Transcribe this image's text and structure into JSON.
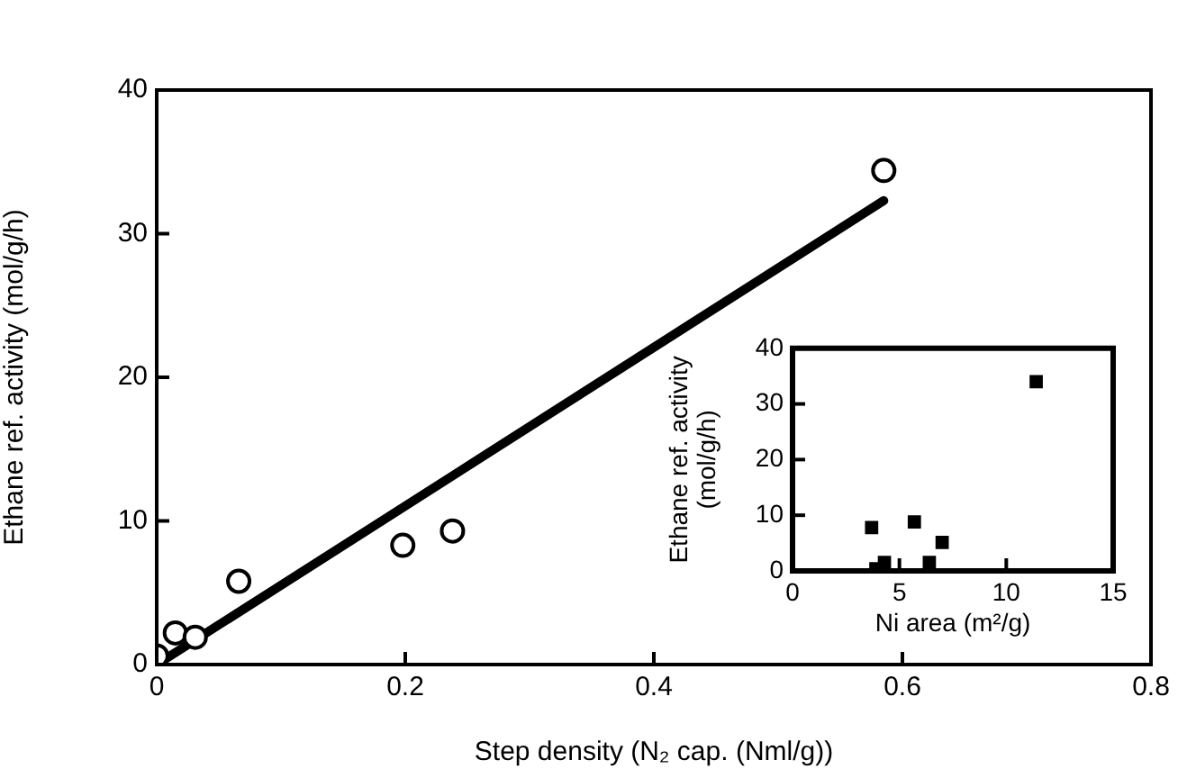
{
  "chart_data": [
    {
      "type": "scatter",
      "xlabel": "Step density (N₂ cap. (Nml/g))",
      "ylabel": "Ethane ref. activity (mol/g/h)",
      "xlim": [
        0,
        0.8
      ],
      "ylim": [
        0,
        40
      ],
      "xticks": [
        0,
        0.2,
        0.4,
        0.6,
        0.8
      ],
      "yticks": [
        0,
        10,
        20,
        30,
        40
      ],
      "series": [
        {
          "marker": "circle",
          "color": "#000000",
          "x": [
            0,
            0.015,
            0.031,
            0.066,
            0.198,
            0.238,
            0.585
          ],
          "values": [
            0.6,
            2.2,
            1.9,
            5.8,
            8.3,
            9.3,
            34.4
          ]
        },
        {
          "type": "line",
          "marker": "none",
          "color": "#000000",
          "x": [
            0,
            0.585
          ],
          "values": [
            0,
            32.3
          ]
        }
      ]
    },
    {
      "type": "scatter",
      "xlabel": "Ni area (m²/g)",
      "ylabel": "Ethane ref. activity\n(mol/g/h)",
      "xlim": [
        0,
        15
      ],
      "ylim": [
        0,
        40
      ],
      "xticks": [
        0,
        5,
        10,
        15
      ],
      "yticks": [
        0,
        10,
        20,
        30,
        40
      ],
      "marker": "square",
      "series": [
        {
          "color": "#000000",
          "x": [
            3.7,
            3.9,
            4.3,
            5.7,
            6.4,
            7.0,
            11.4
          ],
          "values": [
            7.8,
            0.4,
            1.5,
            8.8,
            1.5,
            5.1,
            34.0
          ]
        }
      ]
    }
  ]
}
